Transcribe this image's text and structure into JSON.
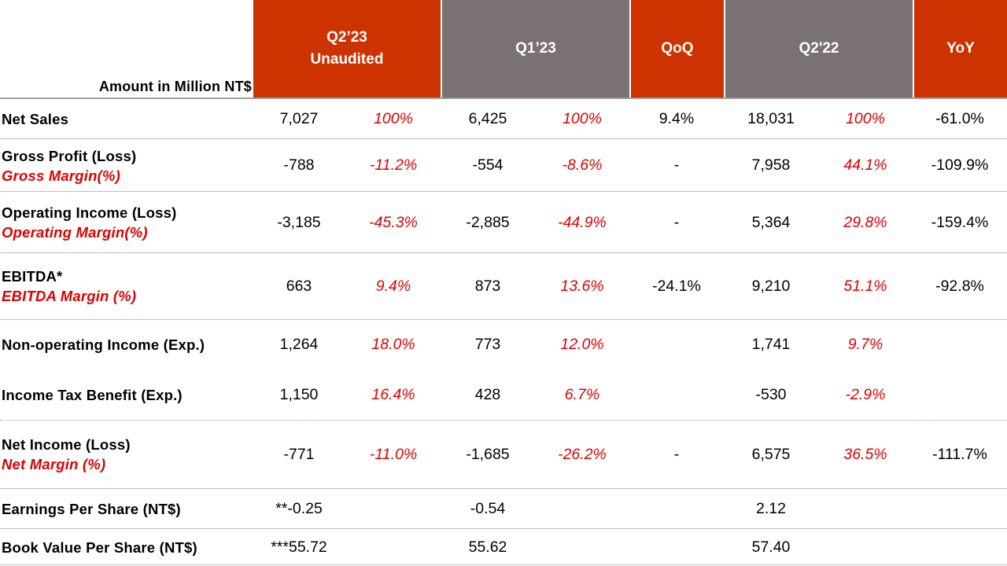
{
  "header": {
    "amount_label": "Amount in Million  NT$",
    "columns": [
      {
        "line1": "Q2’23",
        "line2": "Unaudited",
        "color": "#cc3300"
      },
      {
        "line1": "Q1’23",
        "line2": "",
        "color": "#7a7272"
      },
      {
        "line1": "QoQ",
        "line2": "",
        "color": "#cc3300"
      },
      {
        "line1": "Q2'22",
        "line2": "",
        "color": "#7a7272"
      },
      {
        "line1": "YoY",
        "line2": "",
        "color": "#cc3300"
      }
    ]
  },
  "rows": [
    {
      "label": "Net Sales",
      "sub": "",
      "q223": "7,027",
      "q223_pct": "100%",
      "q123": "6,425",
      "q123_pct": "100%",
      "qoq": "9.4%",
      "q222": "18,031",
      "q222_pct": "100%",
      "yoy": "-61.0%"
    },
    {
      "label": "Gross Profit (Loss)",
      "sub": "Gross Margin(%)",
      "q223": "-788",
      "q223_pct": "-11.2%",
      "q123": "-554",
      "q123_pct": "-8.6%",
      "qoq": "-",
      "q222": "7,958",
      "q222_pct": "44.1%",
      "yoy": "-109.9%"
    },
    {
      "label": "Operating Income (Loss)",
      "sub": "Operating Margin(%)",
      "q223": "-3,185",
      "q223_pct": "-45.3%",
      "q123": "-2,885",
      "q123_pct": "-44.9%",
      "qoq": "-",
      "q222": "5,364",
      "q222_pct": "29.8%",
      "yoy": "-159.4%"
    },
    {
      "label": "EBITDA*",
      "sub": "EBITDA Margin (%)",
      "q223": "663",
      "q223_pct": "9.4%",
      "q123": "873",
      "q123_pct": "13.6%",
      "qoq": "-24.1%",
      "q222": "9,210",
      "q222_pct": "51.1%",
      "yoy": "-92.8%"
    },
    {
      "label": "Non-operating Income (Exp.)",
      "sub": "",
      "q223": "1,264",
      "q223_pct": "18.0%",
      "q123": "773",
      "q123_pct": "12.0%",
      "qoq": "",
      "q222": "1,741",
      "q222_pct": "9.7%",
      "yoy": ""
    },
    {
      "label": "Income Tax Benefit (Exp.)",
      "sub": "",
      "q223": "1,150",
      "q223_pct": "16.4%",
      "q123": "428",
      "q123_pct": "6.7%",
      "qoq": "",
      "q222": "-530",
      "q222_pct": "-2.9%",
      "yoy": ""
    },
    {
      "label": "Net Income (Loss)",
      "sub": "Net Margin (%)",
      "q223": "-771",
      "q223_pct": "-11.0%",
      "q123": "-1,685",
      "q123_pct": "-26.2%",
      "qoq": "-",
      "q222": "6,575",
      "q222_pct": "36.5%",
      "yoy": "-111.7%"
    },
    {
      "label": "Earnings Per Share (NT$)",
      "sub": "",
      "q223": "**-0.25",
      "q223_pct": "",
      "q123": "-0.54",
      "q123_pct": "",
      "qoq": "",
      "q222": "2.12",
      "q222_pct": "",
      "yoy": ""
    },
    {
      "label": "Book Value Per Share (NT$)",
      "sub": "",
      "q223": "***55.72",
      "q223_pct": "",
      "q123": "55.62",
      "q123_pct": "",
      "qoq": "",
      "q222": "57.40",
      "q222_pct": "",
      "yoy": ""
    }
  ]
}
